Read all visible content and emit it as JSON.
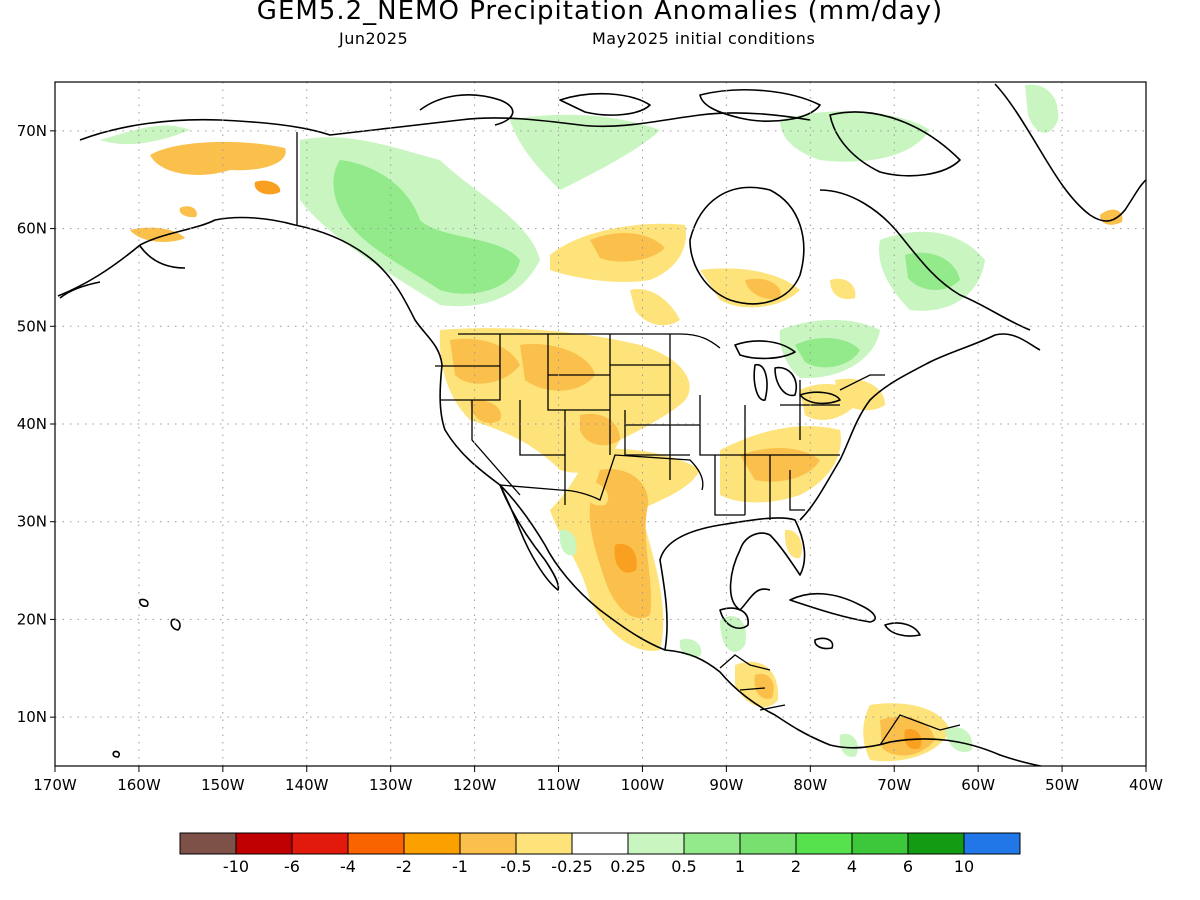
{
  "title": "GEM5.2_NEMO Precipitation Anomalies (mm/day)",
  "subtitle_left": "Jun2025",
  "subtitle_right": "May2025 initial conditions",
  "lon_labels": [
    "170W",
    "160W",
    "150W",
    "140W",
    "130W",
    "120W",
    "110W",
    "100W",
    "90W",
    "80W",
    "70W",
    "60W",
    "50W",
    "40W"
  ],
  "lat_labels": [
    "10N",
    "20N",
    "30N",
    "40N",
    "50N",
    "60N",
    "70N"
  ],
  "map_extent": {
    "lon_min": -170,
    "lon_max": -40,
    "lat_min": 5,
    "lat_max": 75
  },
  "colors": {
    "frame": "#000000",
    "grid": "#9a9a9a",
    "coast": "#000000",
    "dry_light": "#fde37a",
    "dry": "#fbbf4b",
    "dry_strong": "#f9a020",
    "wet_light": "#c8f5c0",
    "wet": "#92ea8a",
    "wet_strong": "#78e06f"
  },
  "colorbar": {
    "colors": [
      "#7d5147",
      "#c00000",
      "#e21a0c",
      "#fa6400",
      "#fca000",
      "#fbbf4b",
      "#fde37a",
      "#ffffff",
      "#c8f5c0",
      "#92ea8a",
      "#78e06f",
      "#55e24d",
      "#3cc83a",
      "#149b14",
      "#2177e8"
    ],
    "labels": [
      "-10",
      "-6",
      "-4",
      "-2",
      "-1",
      "-0.5",
      "-0.25",
      "0.25",
      "0.5",
      "1",
      "2",
      "4",
      "6",
      "10"
    ]
  }
}
